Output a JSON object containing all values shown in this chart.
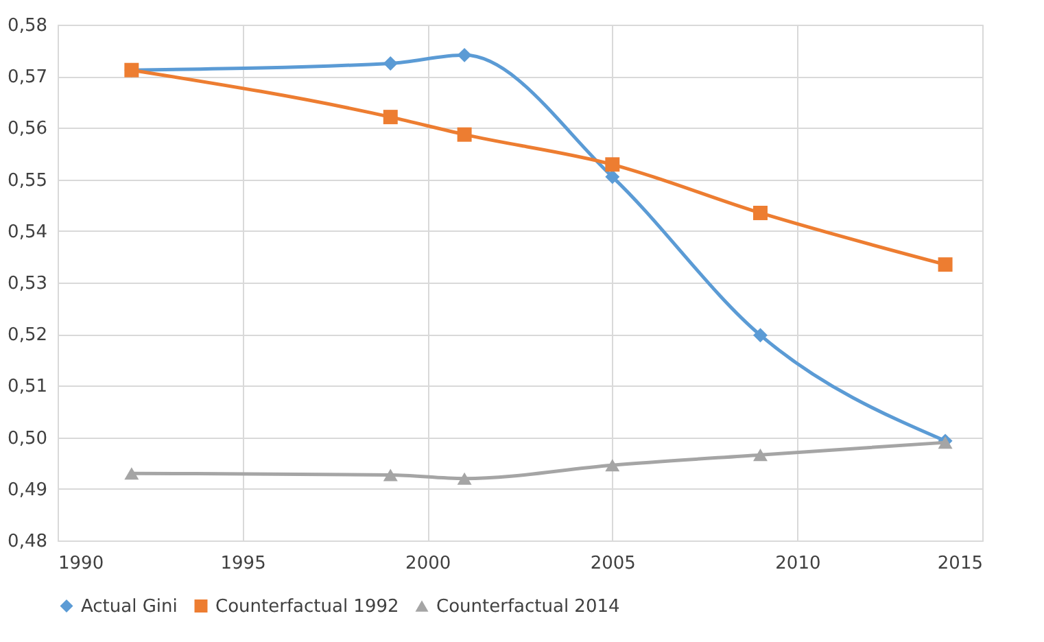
{
  "chart_data": {
    "type": "line",
    "x": [
      1992,
      1999,
      2001,
      2005,
      2009,
      2014
    ],
    "series": [
      {
        "name": "Actual Gini",
        "color": "#5b9bd5",
        "marker": "diamond",
        "values": [
          0.5712,
          0.5725,
          0.5741,
          0.5505,
          0.5198,
          0.4993
        ]
      },
      {
        "name": "Counterfactual 1992",
        "color": "#ed7d31",
        "marker": "square",
        "values": [
          0.5712,
          0.5621,
          0.5587,
          0.5529,
          0.5435,
          0.5335
        ]
      },
      {
        "name": "Counterfactual 2014",
        "color": "#a5a5a5",
        "marker": "triangle",
        "values": [
          0.493,
          0.4927,
          0.492,
          0.4946,
          0.4966,
          0.499
        ]
      }
    ],
    "xlim": [
      1990,
      2015
    ],
    "xticks": [
      1990,
      1995,
      2000,
      2005,
      2010,
      2015
    ],
    "ylim": [
      0.48,
      0.58
    ],
    "yticks": [
      {
        "value": 0.48,
        "label": "0,48"
      },
      {
        "value": 0.49,
        "label": "0,49"
      },
      {
        "value": 0.5,
        "label": "0,50"
      },
      {
        "value": 0.51,
        "label": "0,51"
      },
      {
        "value": 0.52,
        "label": "0,52"
      },
      {
        "value": 0.53,
        "label": "0,53"
      },
      {
        "value": 0.54,
        "label": "0,54"
      },
      {
        "value": 0.55,
        "label": "0,55"
      },
      {
        "value": 0.56,
        "label": "0,56"
      },
      {
        "value": 0.57,
        "label": "0,57"
      },
      {
        "value": 0.58,
        "label": "0,58"
      }
    ],
    "grid": true,
    "legend": "bottom",
    "line_style": "solid"
  }
}
